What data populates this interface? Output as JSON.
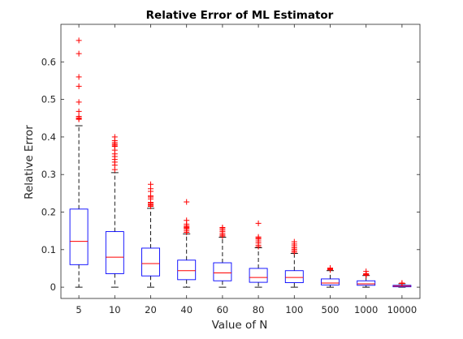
{
  "chart_data": {
    "type": "boxplot",
    "title": "Relative Error of ML Estimator",
    "xlabel": "Value of N",
    "ylabel": "Relative Error",
    "categories": [
      "5",
      "10",
      "20",
      "40",
      "60",
      "80",
      "100",
      "500",
      "1000",
      "10000"
    ],
    "ylim": [
      -0.03,
      0.7
    ],
    "yticks": [
      0,
      0.1,
      0.2,
      0.3,
      0.4,
      0.5,
      0.6
    ],
    "ytick_labels": [
      "0",
      "0.1",
      "0.2",
      "0.3",
      "0.4",
      "0.5",
      "0.6"
    ],
    "grid": false,
    "colors": {
      "box": "#0000ff",
      "median": "#ff0000",
      "whisker": "#000000",
      "outlier": "#ff0000",
      "axis": "#262626"
    },
    "boxes": [
      {
        "category": "5",
        "whisker_low": 0,
        "q1": 0.06,
        "median": 0.122,
        "q3": 0.208,
        "whisker_high": 0.43,
        "outliers": [
          0.447,
          0.449,
          0.451,
          0.455,
          0.468,
          0.493,
          0.535,
          0.56,
          0.622,
          0.657
        ]
      },
      {
        "category": "10",
        "whisker_low": 0,
        "q1": 0.036,
        "median": 0.08,
        "q3": 0.148,
        "whisker_high": 0.305,
        "outliers": [
          0.313,
          0.325,
          0.333,
          0.34,
          0.348,
          0.355,
          0.365,
          0.375,
          0.378,
          0.381,
          0.385,
          0.39,
          0.4
        ]
      },
      {
        "category": "20",
        "whisker_low": 0,
        "q1": 0.03,
        "median": 0.063,
        "q3": 0.104,
        "whisker_high": 0.21,
        "outliers": [
          0.215,
          0.218,
          0.22,
          0.223,
          0.226,
          0.235,
          0.24,
          0.243,
          0.255,
          0.262,
          0.274
        ]
      },
      {
        "category": "40",
        "whisker_low": 0,
        "q1": 0.02,
        "median": 0.044,
        "q3": 0.072,
        "whisker_high": 0.142,
        "outliers": [
          0.146,
          0.15,
          0.155,
          0.158,
          0.16,
          0.163,
          0.168,
          0.178,
          0.227
        ]
      },
      {
        "category": "60",
        "whisker_low": 0,
        "q1": 0.017,
        "median": 0.038,
        "q3": 0.065,
        "whisker_high": 0.133,
        "outliers": [
          0.136,
          0.139,
          0.143,
          0.148,
          0.152,
          0.156,
          0.159
        ]
      },
      {
        "category": "80",
        "whisker_low": 0,
        "q1": 0.013,
        "median": 0.026,
        "q3": 0.05,
        "whisker_high": 0.105,
        "outliers": [
          0.108,
          0.112,
          0.118,
          0.123,
          0.128,
          0.131,
          0.134,
          0.17
        ]
      },
      {
        "category": "100",
        "whisker_low": 0,
        "q1": 0.012,
        "median": 0.026,
        "q3": 0.044,
        "whisker_high": 0.09,
        "outliers": [
          0.093,
          0.097,
          0.101,
          0.105,
          0.11,
          0.115,
          0.121
        ]
      },
      {
        "category": "500",
        "whisker_low": 0,
        "q1": 0.006,
        "median": 0.011,
        "q3": 0.022,
        "whisker_high": 0.044,
        "outliers": [
          0.046,
          0.048,
          0.049,
          0.05,
          0.051
        ]
      },
      {
        "category": "1000",
        "whisker_low": 0,
        "q1": 0.005,
        "median": 0.009,
        "q3": 0.017,
        "whisker_high": 0.031,
        "outliers": [
          0.032,
          0.033,
          0.034,
          0.036,
          0.042
        ]
      },
      {
        "category": "10000",
        "whisker_low": 0,
        "q1": 0.001,
        "median": 0.003,
        "q3": 0.005,
        "whisker_high": 0.009,
        "outliers": [
          0.01,
          0.011
        ]
      }
    ]
  }
}
